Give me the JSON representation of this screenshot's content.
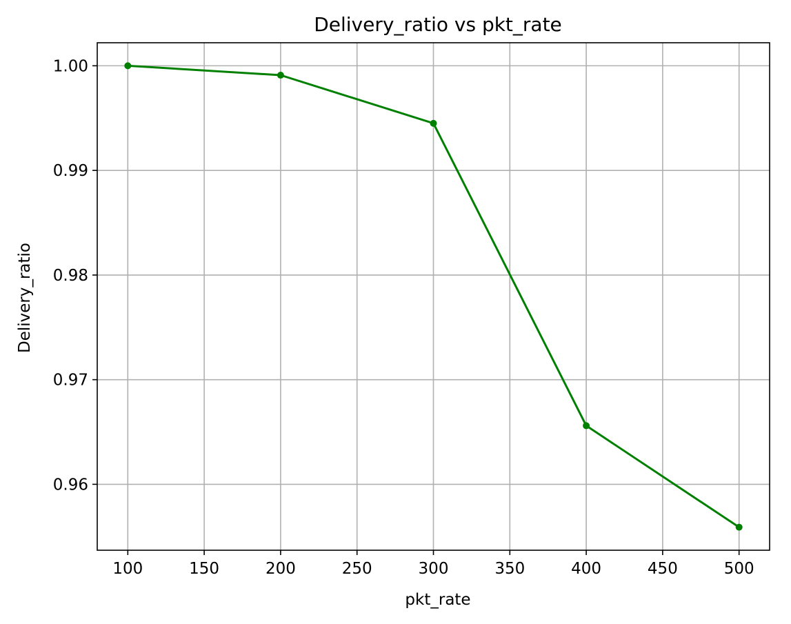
{
  "chart_data": {
    "type": "line",
    "title": "Delivery_ratio vs pkt_rate",
    "xlabel": "pkt_rate",
    "ylabel": "Delivery_ratio",
    "x": [
      100,
      200,
      300,
      400,
      500
    ],
    "series": [
      {
        "values": [
          1.0,
          0.9991,
          0.9945,
          0.9656,
          0.9559
        ],
        "color": "#008000",
        "marker": "circle"
      }
    ],
    "xlim": [
      80,
      520
    ],
    "ylim": [
      0.9537,
      1.0022
    ],
    "xticks": [
      100,
      150,
      200,
      250,
      300,
      350,
      400,
      450,
      500
    ],
    "xtick_labels": [
      "100",
      "150",
      "200",
      "250",
      "300",
      "350",
      "400",
      "450",
      "500"
    ],
    "yticks": [
      0.96,
      0.97,
      0.98,
      0.99,
      1.0
    ],
    "ytick_labels": [
      "0.96",
      "0.97",
      "0.98",
      "0.99",
      "1.00"
    ],
    "grid": true,
    "grid_color": "#b0b0b0",
    "legend": false
  }
}
